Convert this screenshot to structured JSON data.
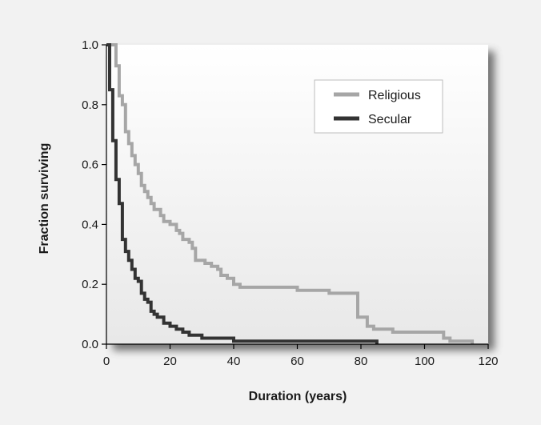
{
  "chart_data": {
    "type": "line",
    "step": true,
    "title": "",
    "xlabel": "Duration (years)",
    "ylabel": "Fraction surviving",
    "xlim": [
      0,
      120
    ],
    "ylim": [
      0,
      1.0
    ],
    "xticks": [
      0,
      20,
      40,
      60,
      80,
      100,
      120
    ],
    "xtick_labels": [
      "0",
      "20",
      "40",
      "60",
      "80",
      "100",
      "120"
    ],
    "yticks": [
      0.0,
      0.2,
      0.4,
      0.6,
      0.8,
      1.0
    ],
    "ytick_labels": [
      "0.0",
      "0.2",
      "0.4",
      "0.6",
      "0.8",
      "1.0"
    ],
    "grid": false,
    "legend_position": "top-right",
    "series": [
      {
        "name": "Religious",
        "color": "#a6a6a6",
        "x": [
          0,
          2,
          3,
          4,
          5,
          6,
          7,
          8,
          9,
          10,
          11,
          12,
          13,
          14,
          15,
          16,
          17,
          18,
          19,
          20,
          22,
          23,
          24,
          25,
          26,
          27,
          28,
          30,
          31,
          33,
          35,
          36,
          38,
          40,
          42,
          45,
          50,
          55,
          60,
          65,
          70,
          75,
          78,
          79,
          82,
          84,
          90,
          95,
          100,
          105,
          106,
          108,
          110,
          115
        ],
        "y": [
          1.0,
          1.0,
          0.93,
          0.83,
          0.8,
          0.71,
          0.67,
          0.63,
          0.6,
          0.57,
          0.53,
          0.51,
          0.49,
          0.47,
          0.45,
          0.45,
          0.43,
          0.41,
          0.41,
          0.4,
          0.38,
          0.37,
          0.35,
          0.35,
          0.34,
          0.32,
          0.28,
          0.28,
          0.27,
          0.26,
          0.25,
          0.23,
          0.22,
          0.2,
          0.19,
          0.19,
          0.19,
          0.19,
          0.18,
          0.18,
          0.17,
          0.17,
          0.17,
          0.09,
          0.06,
          0.05,
          0.04,
          0.04,
          0.04,
          0.04,
          0.02,
          0.01,
          0.01,
          0.0
        ]
      },
      {
        "name": "Secular",
        "color": "#333333",
        "x": [
          0,
          1,
          2,
          3,
          4,
          5,
          6,
          7,
          8,
          9,
          10,
          11,
          12,
          13,
          14,
          15,
          16,
          17,
          18,
          19,
          20,
          22,
          24,
          26,
          28,
          30,
          35,
          40,
          42,
          50,
          60,
          70,
          80,
          85
        ],
        "y": [
          1.0,
          0.85,
          0.68,
          0.55,
          0.47,
          0.35,
          0.31,
          0.28,
          0.25,
          0.22,
          0.21,
          0.17,
          0.15,
          0.14,
          0.11,
          0.1,
          0.09,
          0.09,
          0.07,
          0.07,
          0.06,
          0.05,
          0.04,
          0.03,
          0.03,
          0.02,
          0.02,
          0.01,
          0.01,
          0.01,
          0.01,
          0.01,
          0.01,
          0.0
        ]
      }
    ]
  }
}
